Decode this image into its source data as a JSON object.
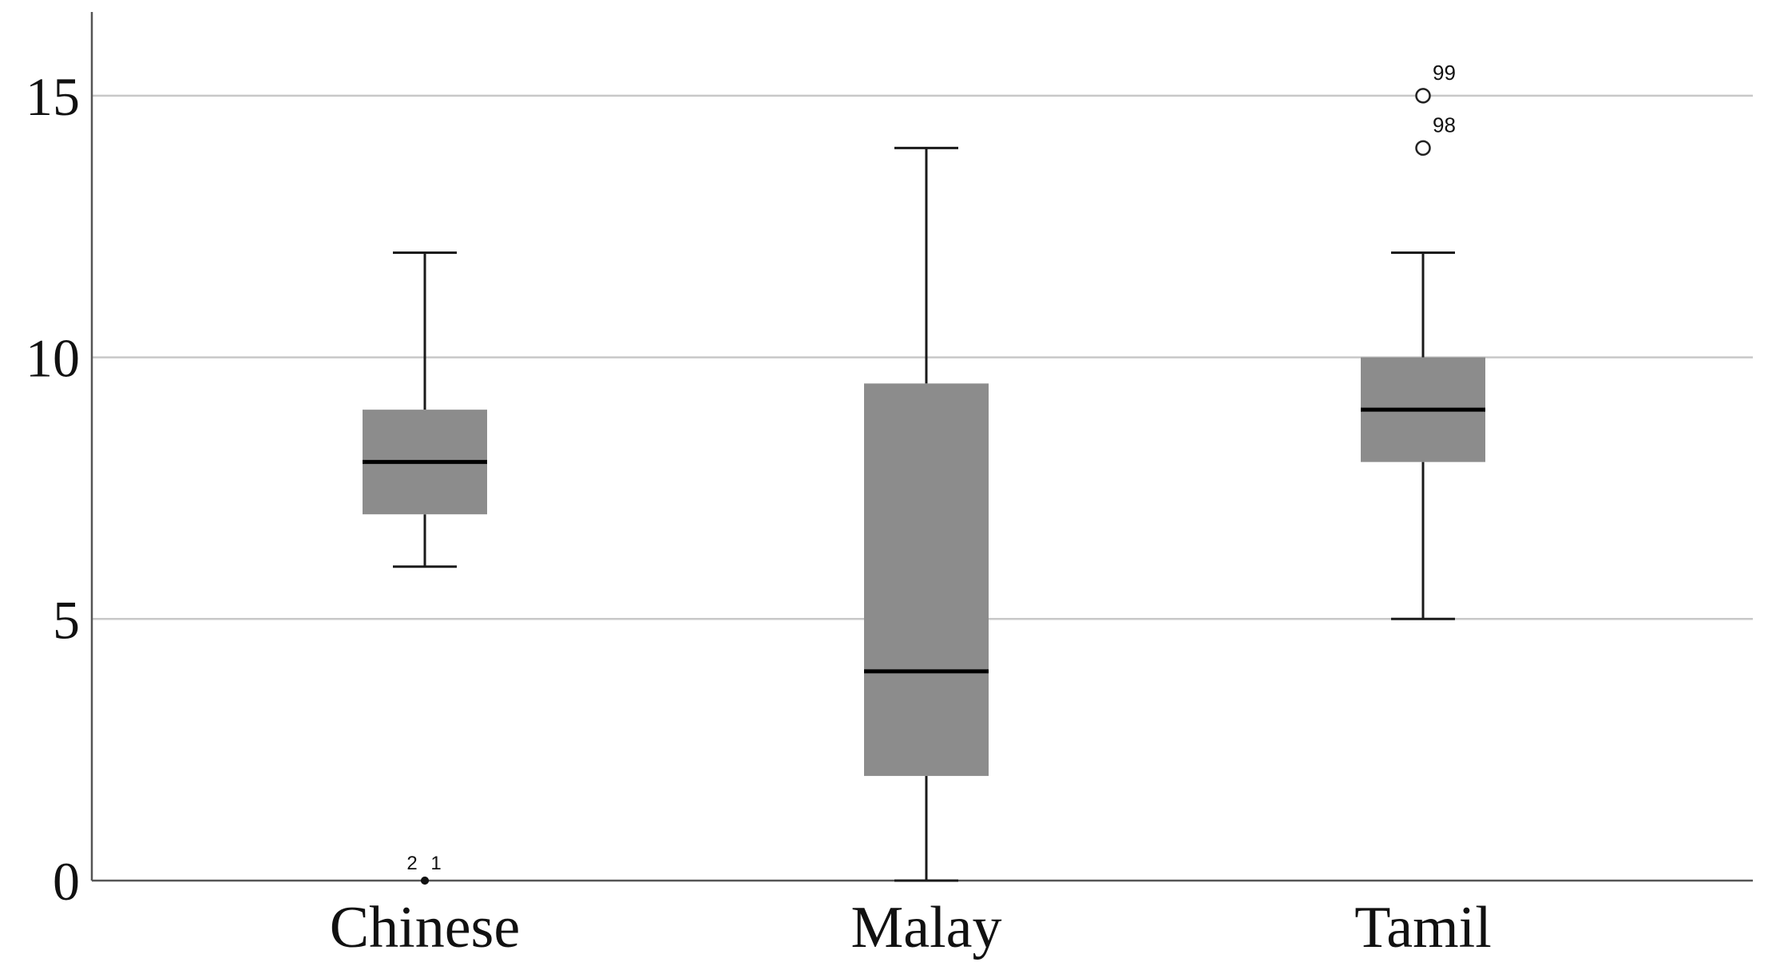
{
  "chart_data": {
    "type": "boxplot",
    "categories": [
      "Chinese",
      "Malay",
      "Tamil"
    ],
    "boxes": [
      {
        "category": "Chinese",
        "min": 6,
        "q1": 7,
        "median": 8,
        "q3": 9,
        "max": 12,
        "outliers": [
          {
            "value": 0,
            "label": "2",
            "style": "filled"
          },
          {
            "value": 0,
            "label": "1",
            "style": "filled"
          }
        ]
      },
      {
        "category": "Malay",
        "min": 0,
        "q1": 2,
        "median": 4,
        "q3": 9.5,
        "max": 14,
        "outliers": []
      },
      {
        "category": "Tamil",
        "min": 5,
        "q1": 8,
        "median": 9,
        "q3": 10,
        "max": 12,
        "outliers": [
          {
            "value": 15,
            "label": "99",
            "style": "open"
          },
          {
            "value": 14,
            "label": "98",
            "style": "open"
          }
        ]
      }
    ],
    "y_ticks": [
      "0",
      "5",
      "10",
      "15"
    ],
    "y_tick_values": [
      0,
      5,
      10,
      15
    ],
    "ylim": [
      0,
      16.6
    ],
    "grid": true,
    "colors": {
      "box_fill": "#8c8c8c",
      "median": "#000000",
      "whisker": "#1a1a1a",
      "grid": "#c8c8c8",
      "axis": "#555555"
    }
  }
}
